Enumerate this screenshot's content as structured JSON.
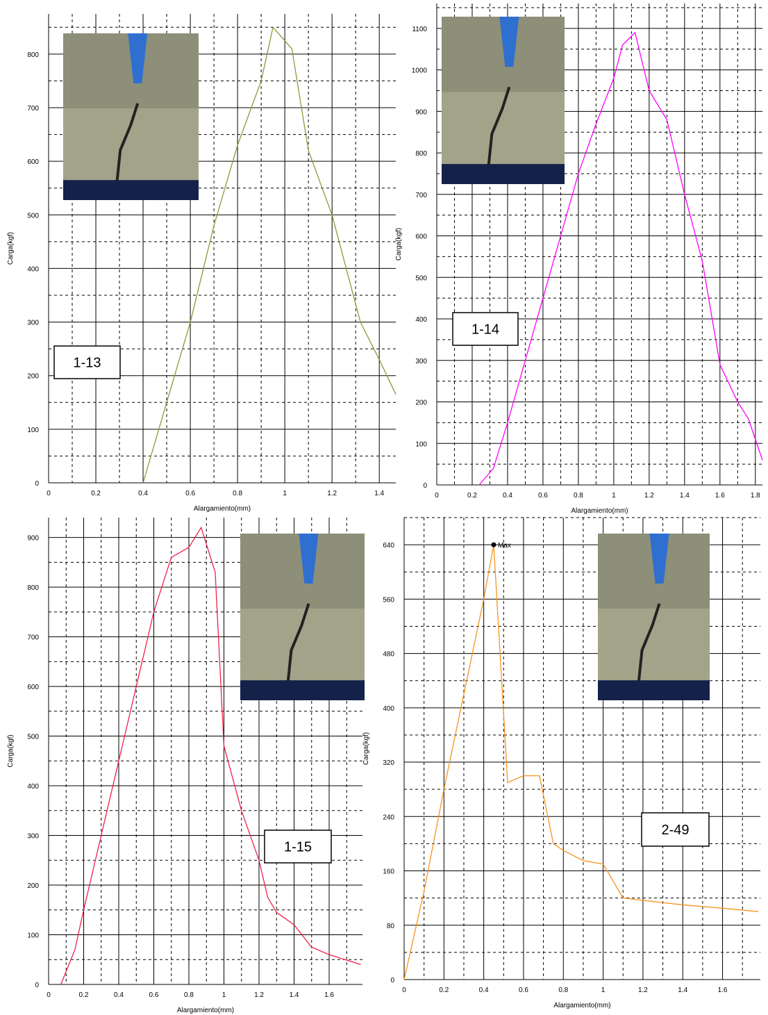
{
  "chart_data": [
    {
      "type": "line",
      "label": "1-13",
      "xlabel": "Alargamiento(mm)",
      "ylabel": "Carga(kgf)",
      "x": [
        0.4,
        0.5,
        0.6,
        0.7,
        0.8,
        0.9,
        0.95,
        1.03,
        1.1,
        1.2,
        1.32,
        1.4,
        1.47
      ],
      "values": [
        0,
        150,
        300,
        480,
        630,
        750,
        850,
        810,
        620,
        500,
        300,
        230,
        165
      ],
      "color": "#8c9a3c",
      "xlim": [
        0,
        1.47
      ],
      "ylim": [
        0,
        875
      ],
      "xticks": [
        0,
        0.2,
        0.4,
        0.6,
        0.8,
        1,
        1.2,
        1.4
      ],
      "yticks": [
        0,
        100,
        200,
        300,
        400,
        500,
        600,
        700,
        800
      ],
      "grid": true
    },
    {
      "type": "line",
      "label": "1-14",
      "xlabel": "Alargamiento(mm)",
      "ylabel": "Carga(kgf)",
      "x": [
        0.24,
        0.32,
        0.4,
        0.5,
        0.6,
        0.7,
        0.8,
        0.9,
        1.0,
        1.05,
        1.12,
        1.2,
        1.3,
        1.4,
        1.5,
        1.6,
        1.7,
        1.76,
        1.84
      ],
      "values": [
        0,
        40,
        150,
        300,
        450,
        600,
        750,
        870,
        980,
        1060,
        1090,
        950,
        880,
        700,
        540,
        290,
        200,
        160,
        60
      ],
      "color": "#ff00ff",
      "xlim": [
        0,
        1.84
      ],
      "ylim": [
        0,
        1160
      ],
      "xticks": [
        0,
        0.2,
        0.4,
        0.6,
        0.8,
        1,
        1.2,
        1.4,
        1.6,
        1.8
      ],
      "yticks": [
        0,
        100,
        200,
        300,
        400,
        500,
        600,
        700,
        800,
        900,
        1000,
        1100
      ],
      "grid": true
    },
    {
      "type": "line",
      "label": "1-15",
      "xlabel": "Alargamiento(mm)",
      "ylabel": "Carga(kgf)",
      "x": [
        0.07,
        0.15,
        0.2,
        0.3,
        0.4,
        0.5,
        0.6,
        0.7,
        0.8,
        0.87,
        0.95,
        1.0,
        1.1,
        1.2,
        1.25,
        1.3,
        1.4,
        1.5,
        1.6,
        1.78
      ],
      "values": [
        0,
        70,
        150,
        300,
        450,
        600,
        750,
        860,
        880,
        920,
        830,
        480,
        350,
        250,
        175,
        145,
        120,
        75,
        60,
        40
      ],
      "color": "#f0204a",
      "xlim": [
        0,
        1.79
      ],
      "ylim": [
        0,
        940
      ],
      "xticks": [
        0,
        0.2,
        0.4,
        0.6,
        0.8,
        1,
        1.2,
        1.4,
        1.6
      ],
      "yticks": [
        0,
        100,
        200,
        300,
        400,
        500,
        600,
        700,
        800,
        900
      ],
      "grid": true
    },
    {
      "type": "line",
      "label": "2-49",
      "max_label": "Max",
      "xlabel": "Alargamiento(mm)",
      "ylabel": "Carga(kgf)",
      "x": [
        0,
        0.1,
        0.2,
        0.3,
        0.4,
        0.45,
        0.52,
        0.6,
        0.68,
        0.75,
        0.8,
        0.9,
        1.0,
        1.1,
        1.4,
        1.6,
        1.78
      ],
      "values": [
        0,
        130,
        280,
        420,
        560,
        640,
        290,
        300,
        300,
        200,
        190,
        175,
        170,
        120,
        110,
        105,
        100
      ],
      "color": "#f7941d",
      "xlim": [
        0,
        1.79
      ],
      "ylim": [
        0,
        680
      ],
      "xticks": [
        0,
        0.2,
        0.4,
        0.6,
        0.8,
        1,
        1.2,
        1.4,
        1.6
      ],
      "yticks": [
        0,
        80,
        160,
        240,
        320,
        400,
        480,
        560,
        640
      ],
      "grid": true
    }
  ]
}
